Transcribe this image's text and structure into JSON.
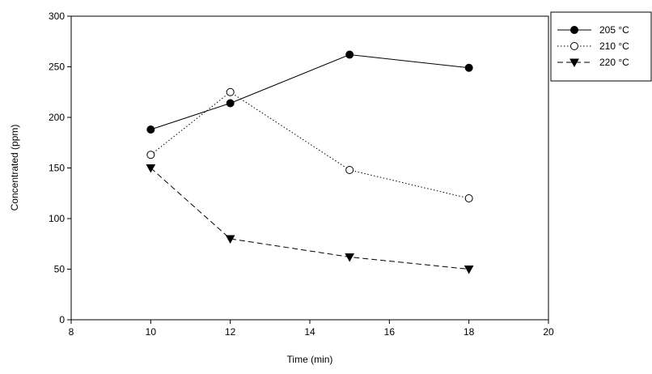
{
  "chart_data": {
    "type": "line",
    "x_label": "Time (min)",
    "y_label": "Concentrated (ppm)",
    "x": [
      10,
      12,
      15,
      18
    ],
    "series": [
      {
        "name": "205 °C",
        "color": "#000000",
        "line": "solid",
        "marker": "circle-filled",
        "values": [
          188,
          214,
          262,
          249
        ]
      },
      {
        "name": "210 °C",
        "color": "#000000",
        "line": "dotted",
        "marker": "circle-open",
        "values": [
          163,
          225,
          148,
          120
        ]
      },
      {
        "name": "220 °C",
        "color": "#000000",
        "line": "dashed",
        "marker": "triangle-down",
        "values": [
          150,
          80,
          62,
          50
        ]
      }
    ],
    "xlim": [
      8,
      20
    ],
    "xticks": [
      8,
      10,
      12,
      14,
      16,
      18,
      20
    ],
    "ylim": [
      0,
      300
    ],
    "yticks": [
      0,
      50,
      100,
      150,
      200,
      250,
      300
    ],
    "legend": "upper-right"
  }
}
